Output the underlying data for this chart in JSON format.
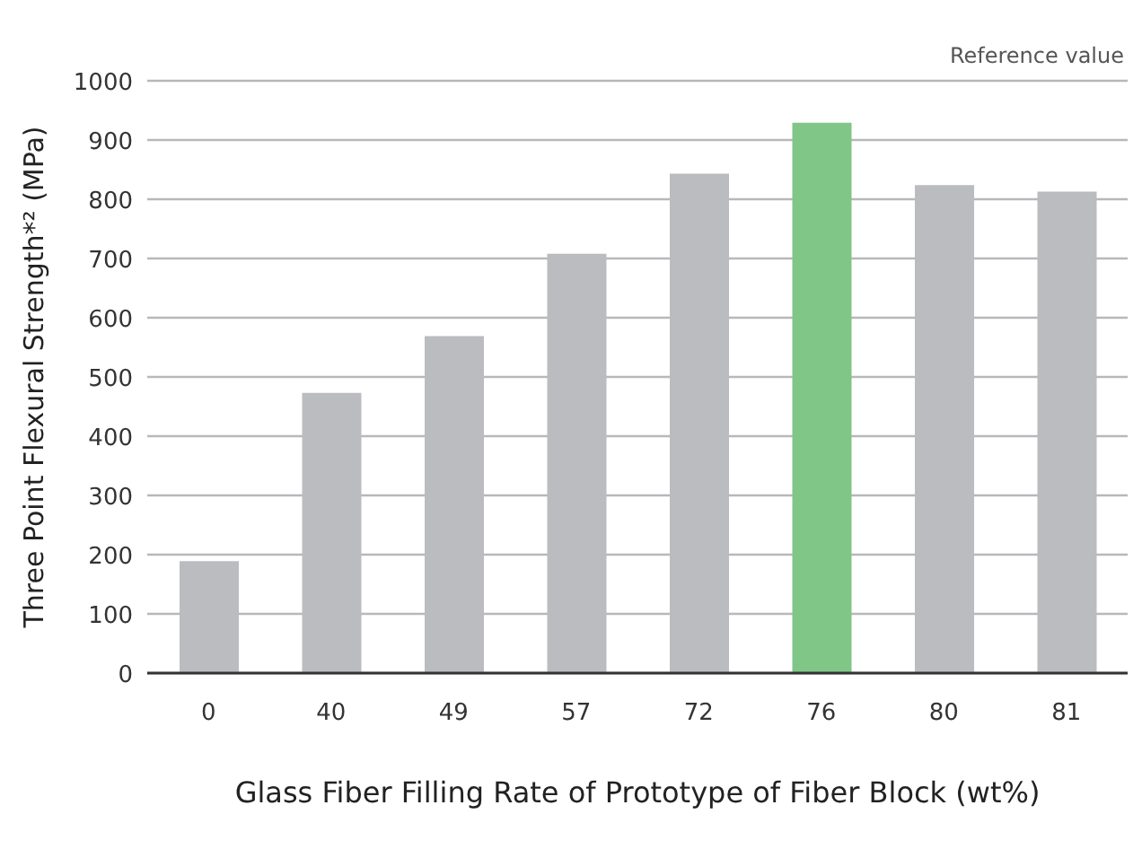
{
  "chart_data": {
    "type": "bar",
    "xlabel": "Glass Fiber Filling Rate of Prototype of Fiber Block (wt%)",
    "ylabel": "Three Point Flexural Strength*² (MPa)",
    "annotations": [
      "Reference value"
    ],
    "categories": [
      "0",
      "40",
      "49",
      "57",
      "72",
      "76",
      "80",
      "81"
    ],
    "values": [
      189,
      473,
      569,
      708,
      843,
      929,
      824,
      813
    ],
    "colors": [
      "#bbbcc0",
      "#bbbcc0",
      "#bbbcc0",
      "#bbbcc0",
      "#bbbcc0",
      "#80c687",
      "#bbbcc0",
      "#bbbcc0"
    ],
    "ylim": [
      0,
      1000
    ],
    "yticks": [
      0,
      100,
      200,
      300,
      400,
      500,
      600,
      700,
      800,
      900,
      1000
    ],
    "grid": "y"
  }
}
